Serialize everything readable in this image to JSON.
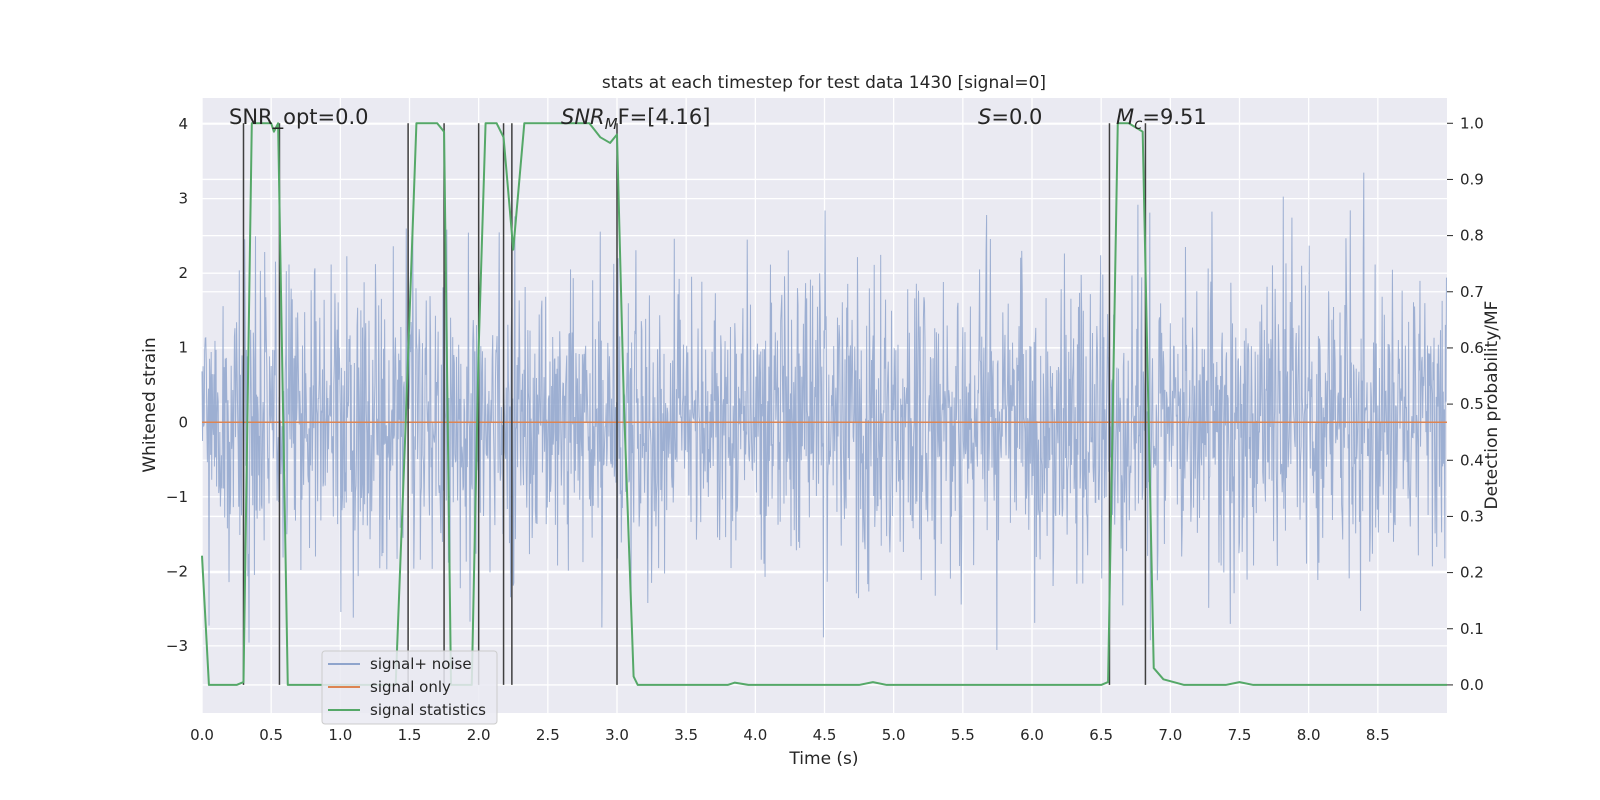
{
  "chart_data": {
    "type": "line",
    "title": "stats at each timestep for test data 1430 [signal=0]",
    "xlabel": "Time (s)",
    "ylabel": "Whitened strain",
    "y2label": "Detection probability/MF",
    "xlim": [
      0,
      9.0
    ],
    "ylim": [
      -3.9,
      4.35
    ],
    "y2lim": [
      -0.05,
      1.045
    ],
    "xticks": [
      "0.0",
      "0.5",
      "1.0",
      "1.5",
      "2.0",
      "2.5",
      "3.0",
      "3.5",
      "4.0",
      "4.5",
      "5.0",
      "5.5",
      "6.0",
      "6.5",
      "7.0",
      "7.5",
      "8.0",
      "8.5"
    ],
    "yticks": [
      "4",
      "3",
      "2",
      "1",
      "0",
      "−1",
      "−2",
      "−3"
    ],
    "y2ticks": [
      "1.0",
      "0.9",
      "0.8",
      "0.7",
      "0.6",
      "0.5",
      "0.4",
      "0.3",
      "0.2",
      "0.1",
      "0.0"
    ],
    "grid": true,
    "legend_position": "lower-left",
    "annotations": {
      "snr_opt": "SNR_opt=0.0",
      "snr_mf_base": "SNR",
      "snr_mf_sub": "M",
      "snr_mf_tail": "F=[4.16]",
      "s_base": "S",
      "s_tail": "=0.0",
      "mc_base": "M",
      "mc_sub": "c",
      "mc_tail": "=9.51"
    },
    "series": [
      {
        "name": "signal+ noise",
        "color": "#8fa4cc",
        "kind": "noise",
        "sample_rate": 256,
        "amplitude_sigma": 1.0
      },
      {
        "name": "signal only",
        "color": "#dd8452",
        "kind": "line",
        "y": 0
      },
      {
        "name": "signal statistics",
        "color": "#55a868",
        "kind": "line",
        "axis": "right",
        "x": [
          0.0,
          0.05,
          0.25,
          0.3,
          0.36,
          0.5,
          0.52,
          0.55,
          0.62,
          0.7,
          1.4,
          1.47,
          1.55,
          1.7,
          1.75,
          1.8,
          1.95,
          2.0,
          2.05,
          2.13,
          2.18,
          2.25,
          2.33,
          2.8,
          2.88,
          2.95,
          3.0,
          3.05,
          3.12,
          3.15,
          3.25,
          3.8,
          3.85,
          3.95,
          4.75,
          4.85,
          4.95,
          6.5,
          6.55,
          6.62,
          6.7,
          6.8,
          6.88,
          6.95,
          7.1,
          7.4,
          7.5,
          7.6,
          9.0
        ],
        "y": [
          0.23,
          0.0,
          0.0,
          0.005,
          1.0,
          1.0,
          0.985,
          1.0,
          0.0,
          0.0,
          0.0,
          0.45,
          1.0,
          1.0,
          0.985,
          0.0,
          0.0,
          0.6,
          1.0,
          1.0,
          0.975,
          0.775,
          1.0,
          1.0,
          0.975,
          0.965,
          0.98,
          0.5,
          0.015,
          0.0,
          0.0,
          0.0,
          0.004,
          0.0,
          0.0,
          0.005,
          0.0,
          0.0,
          0.005,
          1.0,
          1.0,
          0.985,
          0.03,
          0.01,
          0.0,
          0.0,
          0.005,
          0.0,
          0.0
        ]
      }
    ],
    "vertical_lines_x": [
      0.3,
      0.56,
      1.49,
      1.75,
      2.0,
      2.18,
      2.24,
      3.0,
      6.56,
      6.82
    ],
    "vertical_line_color": "#3f3f3f"
  }
}
